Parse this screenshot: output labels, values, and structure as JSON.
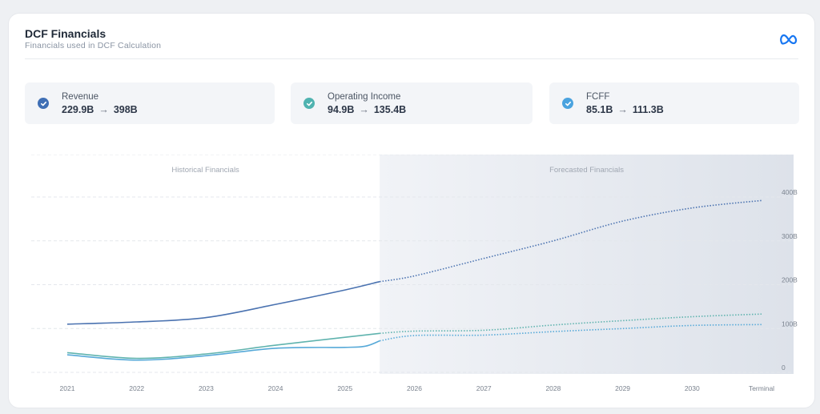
{
  "header": {
    "title": "DCF Financials",
    "subtitle": "Financials used in DCF Calculation"
  },
  "kpis": [
    {
      "label": "Revenue",
      "from": "229.9B",
      "to": "398B",
      "color": "#3f6fb5"
    },
    {
      "label": "Operating Income",
      "from": "94.9B",
      "to": "135.4B",
      "color": "#4fb3b0"
    },
    {
      "label": "FCFF",
      "from": "85.1B",
      "to": "111.3B",
      "color": "#4aa3df"
    }
  ],
  "chart_data": {
    "type": "line",
    "regions": [
      "Historical Financials",
      "Forecasted Financials"
    ],
    "categories": [
      "2021",
      "2022",
      "2023",
      "2024",
      "2025",
      "2026",
      "2027",
      "2028",
      "2029",
      "2030",
      "Terminal"
    ],
    "y_ticks": [
      "0",
      "100B",
      "200B",
      "300B",
      "400B"
    ],
    "ylim": [
      0,
      400
    ],
    "grid": true,
    "series": [
      {
        "key": "revenue",
        "color": "#4a72b0",
        "x": [
          2021,
          2022,
          2023,
          2024,
          2025,
          2025.5,
          2026,
          2027,
          2028,
          2029,
          2030,
          2031
        ],
        "values": [
          110,
          115,
          125,
          155,
          188,
          207,
          220,
          260,
          300,
          345,
          375,
          392
        ]
      },
      {
        "key": "operating_income",
        "color": "#5fb3ae",
        "x": [
          2021,
          2022,
          2023,
          2024,
          2025,
          2025.5,
          2026,
          2027,
          2028,
          2029,
          2030,
          2031
        ],
        "values": [
          45,
          32,
          42,
          62,
          80,
          89,
          94,
          96,
          108,
          118,
          127,
          133
        ]
      },
      {
        "key": "fcff",
        "color": "#56a9d8",
        "x": [
          2021,
          2022,
          2023,
          2024,
          2025,
          2025.3,
          2025.5,
          2026,
          2027,
          2028,
          2029,
          2030,
          2031
        ],
        "values": [
          40,
          28,
          38,
          55,
          57,
          60,
          72,
          84,
          85,
          93,
          100,
          107,
          109
        ]
      }
    ],
    "forecast_start": 2025.5
  }
}
